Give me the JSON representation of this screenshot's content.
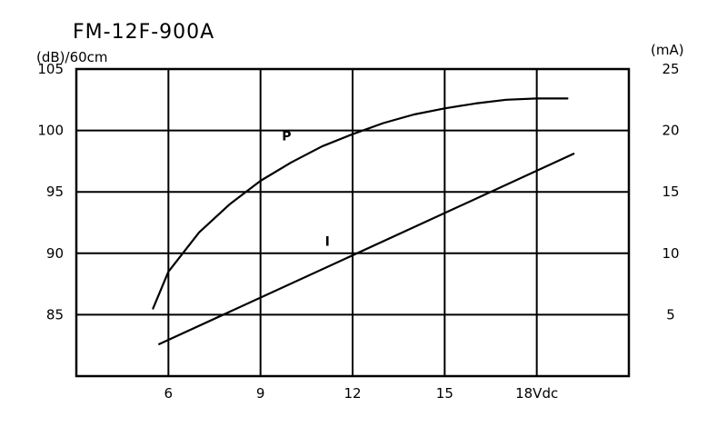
{
  "chart_data": {
    "type": "line",
    "title": "FM-12F-900A",
    "y_left_label": "(dB)/60cm",
    "y_right_label": "(mA)",
    "x_ticks": [
      "6",
      "9",
      "12",
      "15",
      "18Vdc"
    ],
    "x_tick_values": [
      6,
      9,
      12,
      15,
      18
    ],
    "y_left_ticks": [
      "105",
      "100",
      "95",
      "90",
      "85"
    ],
    "y_left_tick_values": [
      105,
      100,
      95,
      90,
      85
    ],
    "y_right_ticks": [
      "25",
      "20",
      "15",
      "10",
      "5"
    ],
    "y_right_tick_values": [
      25,
      20,
      15,
      10,
      5
    ],
    "xlim": [
      3,
      21
    ],
    "ylim_left": [
      80,
      105
    ],
    "ylim_right": [
      0,
      25
    ],
    "grid": true,
    "series": [
      {
        "name": "P",
        "axis": "left",
        "x": [
          5.5,
          6,
          7,
          8,
          9,
          10,
          11,
          12,
          13,
          14,
          15,
          16,
          17,
          18,
          19
        ],
        "y": [
          85.5,
          88.5,
          91.7,
          94.0,
          95.9,
          97.4,
          98.7,
          99.7,
          100.6,
          101.3,
          101.8,
          102.2,
          102.5,
          102.6,
          102.6
        ]
      },
      {
        "name": "I",
        "axis": "right",
        "x": [
          5.7,
          19.2
        ],
        "y": [
          2.6,
          18.1
        ]
      }
    ]
  }
}
